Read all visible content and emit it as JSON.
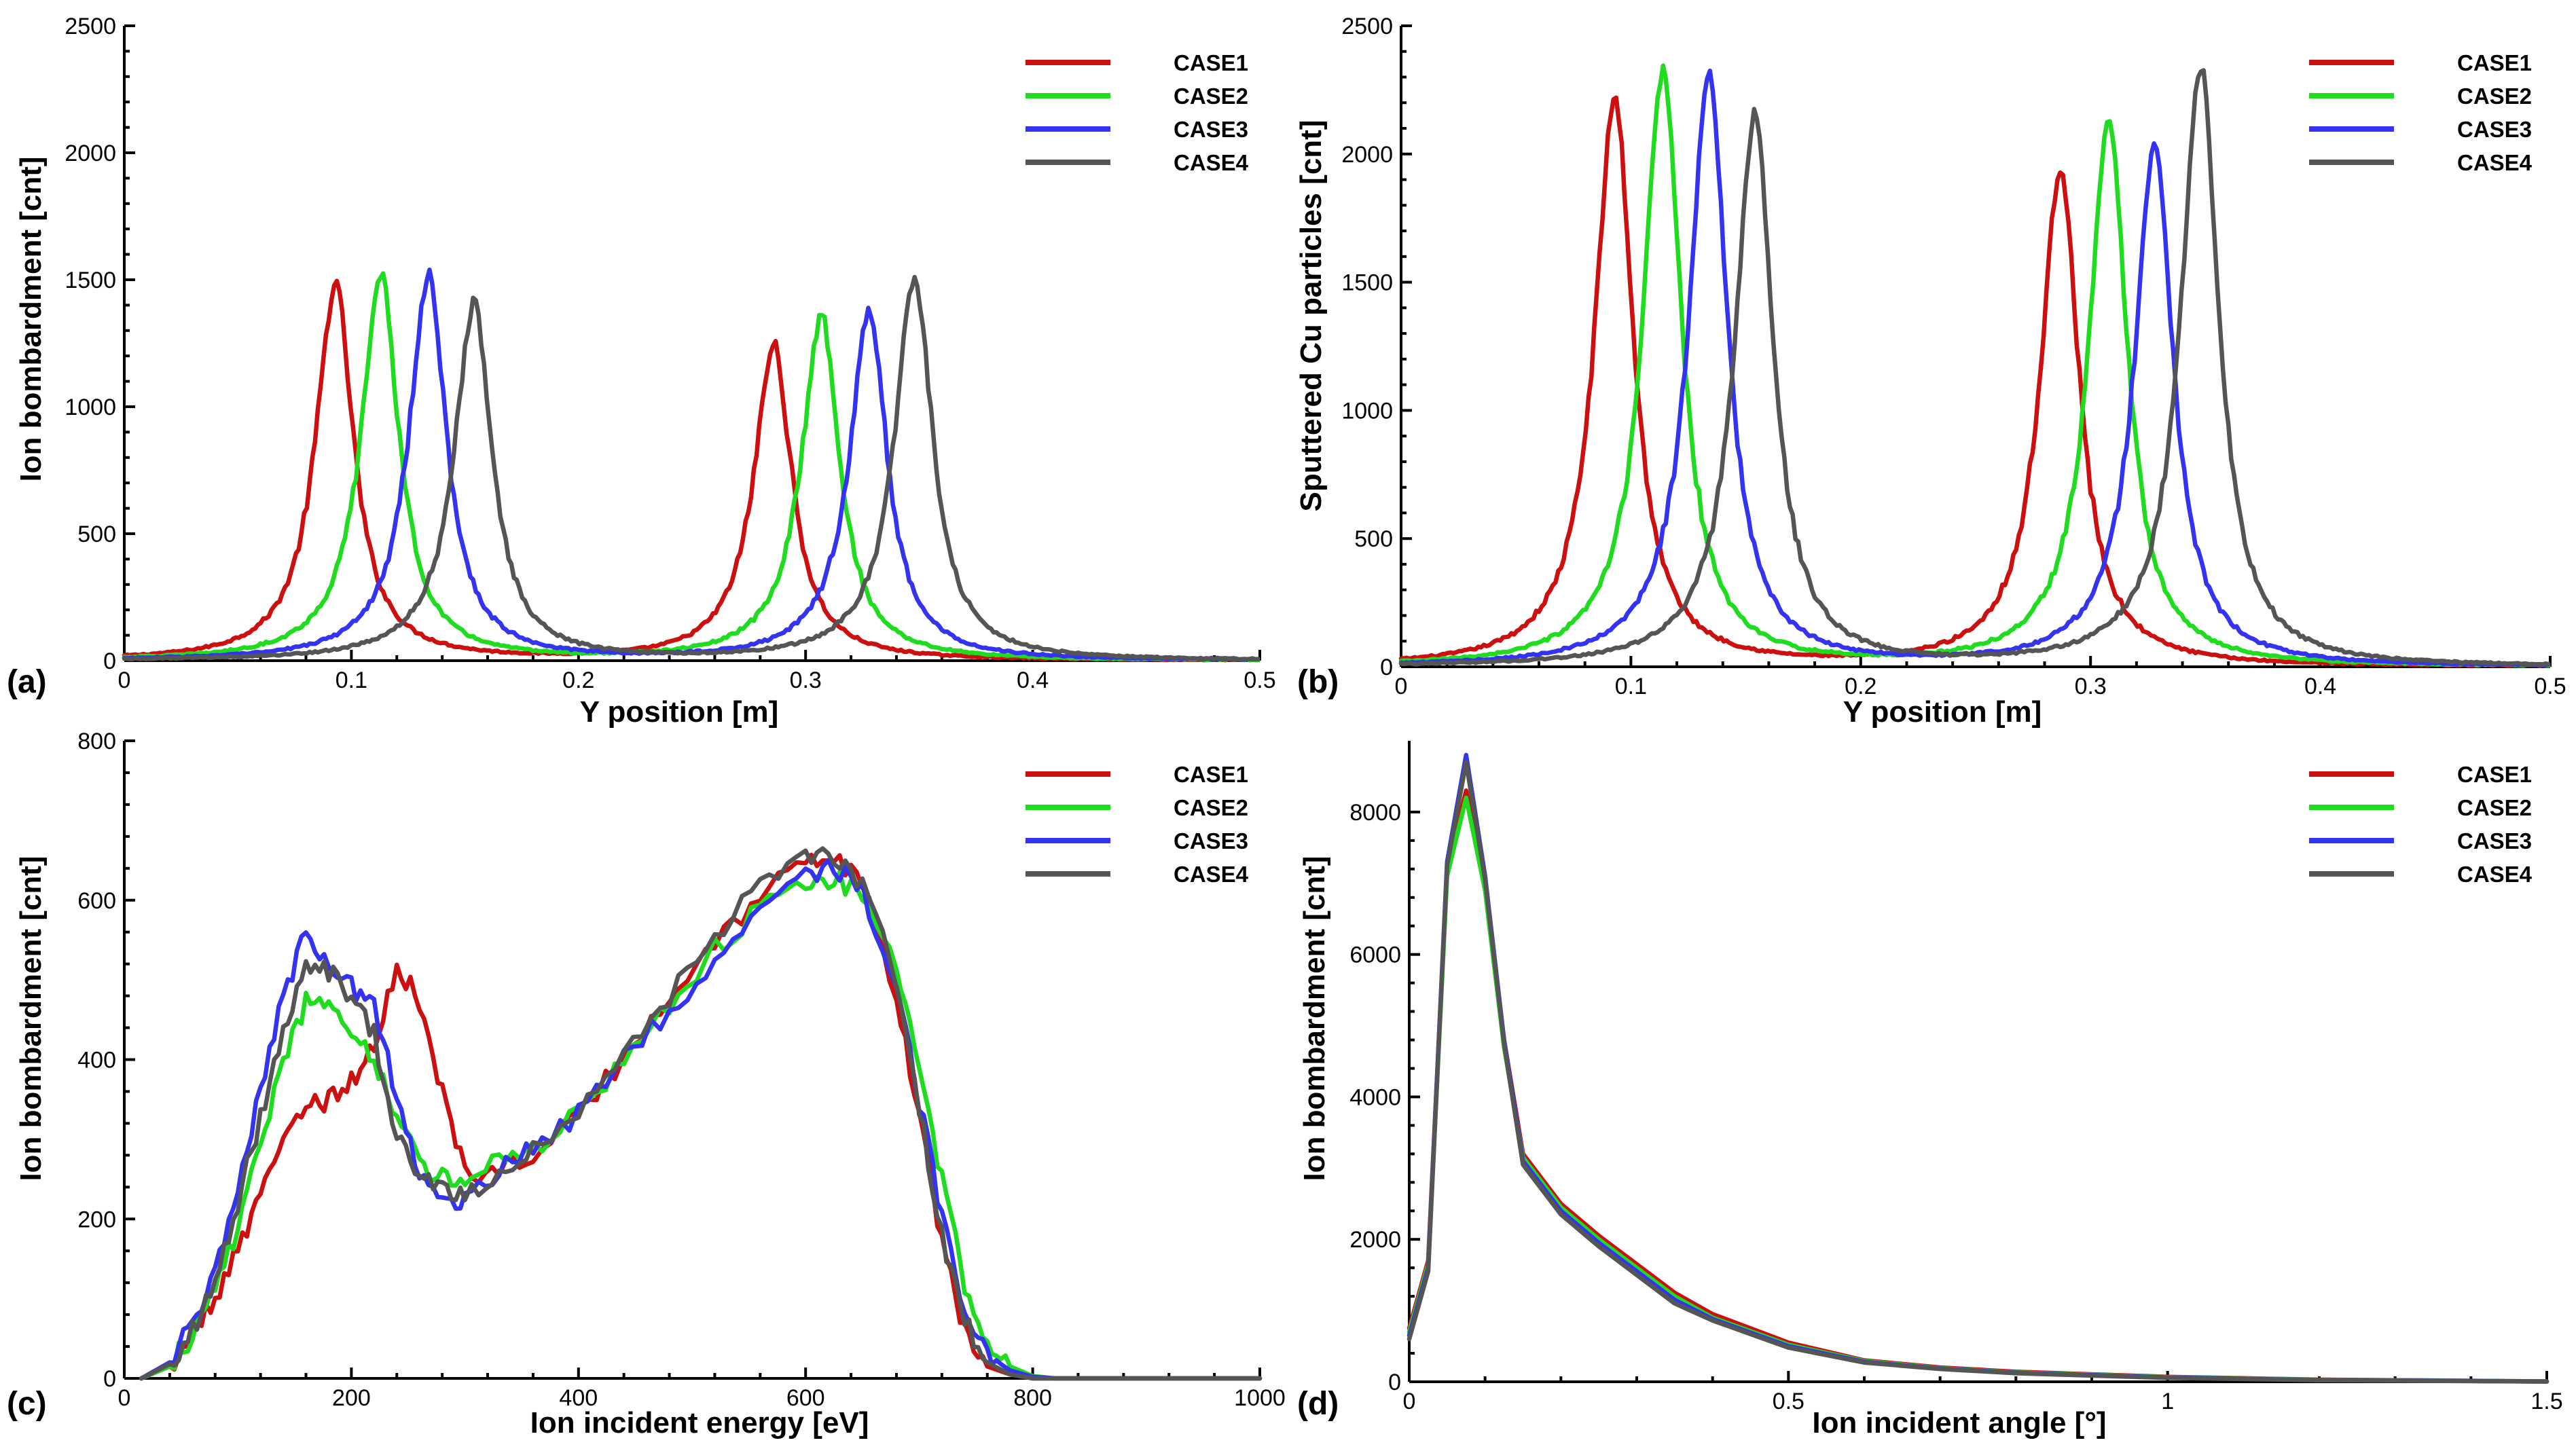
{
  "colors": {
    "CASE1": "#cc1010",
    "CASE2": "#1fdc1f",
    "CASE3": "#3434f0",
    "CASE4": "#555555"
  },
  "chart_data": [
    {
      "id": "a",
      "panel_label": "(a)",
      "type": "line",
      "xlabel": "Y position [m]",
      "ylabel": "Ion bombardment [cnt]",
      "xlim": [
        0,
        0.5
      ],
      "ylim": [
        0,
        2500
      ],
      "xticks": [
        0,
        0.1,
        0.2,
        0.3,
        0.4,
        0.5
      ],
      "xtick_labels": [
        "0",
        "0.1",
        "0.2",
        "0.3",
        "0.4",
        "0.5"
      ],
      "yticks": [
        0,
        500,
        1000,
        1500,
        2000,
        2500
      ],
      "ytick_labels": [
        "0",
        "500",
        "1000",
        "1500",
        "2000",
        "2500"
      ],
      "legend": [
        "CASE1",
        "CASE2",
        "CASE3",
        "CASE4"
      ],
      "legend_position": "top-right",
      "peaks": [
        {
          "name": "CASE1",
          "p1": {
            "x": 0.093,
            "y": 1480
          },
          "p2": {
            "x": 0.286,
            "y": 1240
          }
        },
        {
          "name": "CASE2",
          "p1": {
            "x": 0.113,
            "y": 1520
          },
          "p2": {
            "x": 0.307,
            "y": 1360
          }
        },
        {
          "name": "CASE3",
          "p1": {
            "x": 0.134,
            "y": 1510
          },
          "p2": {
            "x": 0.328,
            "y": 1370
          }
        },
        {
          "name": "CASE4",
          "p1": {
            "x": 0.154,
            "y": 1400
          },
          "p2": {
            "x": 0.348,
            "y": 1510
          }
        }
      ]
    },
    {
      "id": "b",
      "panel_label": "(b)",
      "type": "line",
      "xlabel": "Y position [m]",
      "ylabel": "Sputtered Cu particles [cnt]",
      "xlim": [
        0,
        0.5
      ],
      "ylim": [
        0,
        2500
      ],
      "xticks": [
        0,
        0.1,
        0.2,
        0.3,
        0.4,
        0.5
      ],
      "xtick_labels": [
        "0",
        "0.1",
        "0.2",
        "0.3",
        "0.4",
        "0.5"
      ],
      "yticks": [
        0,
        500,
        1000,
        1500,
        2000,
        2500
      ],
      "ytick_labels": [
        "0",
        "500",
        "1000",
        "1500",
        "2000",
        "2500"
      ],
      "legend": [
        "CASE1",
        "CASE2",
        "CASE3",
        "CASE4"
      ],
      "legend_position": "top-right",
      "peaks": [
        {
          "name": "CASE1",
          "p1": {
            "x": 0.093,
            "y": 2220
          },
          "p2": {
            "x": 0.287,
            "y": 1950
          }
        },
        {
          "name": "CASE2",
          "p1": {
            "x": 0.114,
            "y": 2330
          },
          "p2": {
            "x": 0.308,
            "y": 2150
          }
        },
        {
          "name": "CASE3",
          "p1": {
            "x": 0.134,
            "y": 2310
          },
          "p2": {
            "x": 0.328,
            "y": 2040
          }
        },
        {
          "name": "CASE4",
          "p1": {
            "x": 0.154,
            "y": 2150
          },
          "p2": {
            "x": 0.348,
            "y": 2340
          }
        }
      ]
    },
    {
      "id": "c",
      "panel_label": "(c)",
      "type": "line",
      "xlabel": "Ion incident energy [eV]",
      "ylabel": "Ion bombardment [cnt]",
      "xlim": [
        0,
        1000
      ],
      "ylim": [
        0,
        800
      ],
      "xticks": [
        0,
        200,
        400,
        600,
        800,
        1000
      ],
      "xtick_labels": [
        "0",
        "200",
        "400",
        "600",
        "800",
        "1000"
      ],
      "yticks": [
        0,
        200,
        400,
        600,
        800
      ],
      "ytick_labels": [
        "0",
        "200",
        "400",
        "600",
        "800"
      ],
      "legend": [
        "CASE1",
        "CASE2",
        "CASE3",
        "CASE4"
      ],
      "legend_position": "top-right",
      "series": [
        {
          "name": "CASE1",
          "x": [
            15,
            40,
            60,
            80,
            100,
            120,
            140,
            160,
            180,
            200,
            220,
            240,
            260,
            280,
            300,
            330,
            360,
            400,
            440,
            480,
            520,
            560,
            600,
            625,
            650,
            680,
            700,
            720,
            740,
            760,
            780,
            800,
            820
          ],
          "y": [
            0,
            15,
            50,
            100,
            160,
            230,
            300,
            340,
            350,
            370,
            420,
            520,
            470,
            360,
            260,
            255,
            280,
            330,
            400,
            470,
            540,
            610,
            650,
            655,
            620,
            480,
            330,
            170,
            60,
            15,
            5,
            0,
            0
          ]
        },
        {
          "name": "CASE2",
          "x": [
            15,
            40,
            60,
            80,
            100,
            120,
            140,
            160,
            180,
            200,
            220,
            240,
            260,
            280,
            300,
            330,
            360,
            400,
            440,
            480,
            520,
            560,
            600,
            625,
            650,
            680,
            700,
            720,
            740,
            760,
            780,
            800,
            820
          ],
          "y": [
            0,
            15,
            55,
            110,
            190,
            290,
            400,
            470,
            470,
            430,
            400,
            330,
            270,
            255,
            250,
            270,
            290,
            330,
            400,
            470,
            540,
            590,
            625,
            625,
            610,
            520,
            380,
            250,
            120,
            45,
            15,
            3,
            0
          ]
        },
        {
          "name": "CASE3",
          "x": [
            15,
            40,
            60,
            80,
            100,
            120,
            140,
            160,
            180,
            200,
            220,
            240,
            260,
            280,
            300,
            330,
            360,
            400,
            440,
            480,
            520,
            560,
            600,
            625,
            650,
            680,
            700,
            720,
            740,
            760,
            780,
            800,
            820
          ],
          "y": [
            0,
            20,
            70,
            140,
            240,
            360,
            480,
            560,
            520,
            490,
            470,
            350,
            260,
            220,
            225,
            260,
            290,
            330,
            400,
            460,
            530,
            600,
            630,
            640,
            610,
            500,
            350,
            200,
            90,
            30,
            10,
            2,
            0
          ]
        },
        {
          "name": "CASE4",
          "x": [
            15,
            40,
            60,
            80,
            100,
            120,
            140,
            160,
            180,
            200,
            220,
            240,
            260,
            280,
            300,
            330,
            360,
            400,
            440,
            480,
            520,
            560,
            600,
            625,
            650,
            680,
            700,
            720,
            740,
            760,
            780,
            800,
            820
          ],
          "y": [
            0,
            18,
            60,
            125,
            220,
            330,
            440,
            510,
            510,
            480,
            430,
            300,
            250,
            240,
            230,
            255,
            290,
            340,
            410,
            480,
            550,
            620,
            660,
            650,
            620,
            500,
            340,
            180,
            70,
            20,
            5,
            0,
            0
          ]
        }
      ]
    },
    {
      "id": "d",
      "panel_label": "(d)",
      "type": "line",
      "xlabel": "Ion incident angle [°]",
      "ylabel": "Ion bombardment [cnt]",
      "xlim": [
        0,
        1.5
      ],
      "ylim": [
        0,
        9000
      ],
      "xticks": [
        0,
        0.5,
        1,
        1.5
      ],
      "xtick_labels": [
        "0",
        "0.5",
        "1",
        "1.5"
      ],
      "yticks": [
        0,
        2000,
        4000,
        6000,
        8000
      ],
      "ytick_labels": [
        "0",
        "2000",
        "4000",
        "6000",
        "8000"
      ],
      "legend": [
        "CASE1",
        "CASE2",
        "CASE3",
        "CASE4"
      ],
      "legend_position": "top-right",
      "series": [
        {
          "name": "CASE1",
          "x": [
            0,
            0.025,
            0.05,
            0.075,
            0.1,
            0.125,
            0.15,
            0.2,
            0.25,
            0.3,
            0.35,
            0.4,
            0.5,
            0.6,
            0.7,
            0.8,
            1.0,
            1.2,
            1.5
          ],
          "y": [
            750,
            1700,
            7200,
            8300,
            7000,
            4800,
            3200,
            2500,
            2050,
            1650,
            1250,
            950,
            550,
            300,
            200,
            140,
            70,
            30,
            5
          ]
        },
        {
          "name": "CASE2",
          "x": [
            0,
            0.025,
            0.05,
            0.075,
            0.1,
            0.125,
            0.15,
            0.2,
            0.25,
            0.3,
            0.35,
            0.4,
            0.5,
            0.6,
            0.7,
            0.8,
            1.0,
            1.2,
            1.5
          ],
          "y": [
            700,
            1650,
            7100,
            8200,
            6900,
            4700,
            3150,
            2450,
            2000,
            1600,
            1200,
            900,
            520,
            290,
            190,
            130,
            65,
            28,
            5
          ]
        },
        {
          "name": "CASE3",
          "x": [
            0,
            0.025,
            0.05,
            0.075,
            0.1,
            0.125,
            0.15,
            0.2,
            0.25,
            0.3,
            0.35,
            0.4,
            0.5,
            0.6,
            0.7,
            0.8,
            1.0,
            1.2,
            1.5
          ],
          "y": [
            650,
            1600,
            7300,
            8800,
            7100,
            4800,
            3100,
            2400,
            1950,
            1550,
            1150,
            880,
            500,
            280,
            185,
            125,
            60,
            25,
            4
          ]
        },
        {
          "name": "CASE4",
          "x": [
            0,
            0.025,
            0.05,
            0.075,
            0.1,
            0.125,
            0.15,
            0.2,
            0.25,
            0.3,
            0.35,
            0.4,
            0.5,
            0.6,
            0.7,
            0.8,
            1.0,
            1.2,
            1.5
          ],
          "y": [
            600,
            1550,
            7250,
            8700,
            7050,
            4750,
            3050,
            2350,
            1900,
            1500,
            1100,
            860,
            480,
            270,
            180,
            120,
            55,
            22,
            4
          ]
        }
      ]
    }
  ]
}
